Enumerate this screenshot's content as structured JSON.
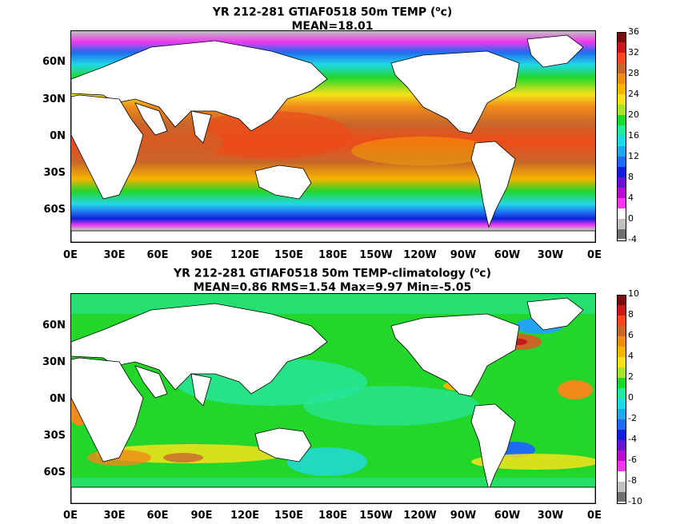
{
  "panels": [
    {
      "title_line1": "YR 212-281 GTIAF0518 50m TEMP (",
      "title_sup": "o",
      "title_end": "c)",
      "title_line2": "MEAN=18.01",
      "colorbar_labels": [
        "36",
        "32",
        "28",
        "24",
        "20",
        "16",
        "12",
        "8",
        "4",
        "0",
        "-4"
      ],
      "colorbar_colors": [
        "#7a0c0c",
        "#c41a1a",
        "#ee4a1a",
        "#c8662a",
        "#f08a1a",
        "#f6b400",
        "#f6e21a",
        "#a6e23a",
        "#22d62a",
        "#28e6a0",
        "#22d8e6",
        "#22a6f2",
        "#1e6cf0",
        "#1020d8",
        "#6a14c8",
        "#b80cd0",
        "#f038f0",
        "#ffffff",
        "#c0c0c0",
        "#707070"
      ]
    },
    {
      "title_line1": "YR 212-281 GTIAF0518 50m TEMP-climatology (",
      "title_sup": "o",
      "title_end": "c)",
      "title_line2": "MEAN=0.86   RMS=1.54   Max=9.97   Min=-5.05",
      "colorbar_labels": [
        "10",
        "8",
        "6",
        "4",
        "2",
        "0",
        "-2",
        "-4",
        "-6",
        "-8",
        "-10"
      ],
      "colorbar_colors": [
        "#7a0c0c",
        "#c41a1a",
        "#ee4a1a",
        "#c8662a",
        "#f08a1a",
        "#f6b400",
        "#f6e21a",
        "#a6e23a",
        "#22d62a",
        "#28e6a0",
        "#22d8e6",
        "#22a6f2",
        "#1e6cf0",
        "#1020d8",
        "#6a14c8",
        "#b80cd0",
        "#f038f0",
        "#ffffff",
        "#c0c0c0",
        "#707070"
      ]
    }
  ],
  "lat_labels": [
    "60N",
    "30N",
    "0N",
    "30S",
    "60S"
  ],
  "lon_labels": [
    "0E",
    "30E",
    "60E",
    "90E",
    "120E",
    "150E",
    "180E",
    "150W",
    "120W",
    "90W",
    "60W",
    "30W",
    "0E"
  ]
}
